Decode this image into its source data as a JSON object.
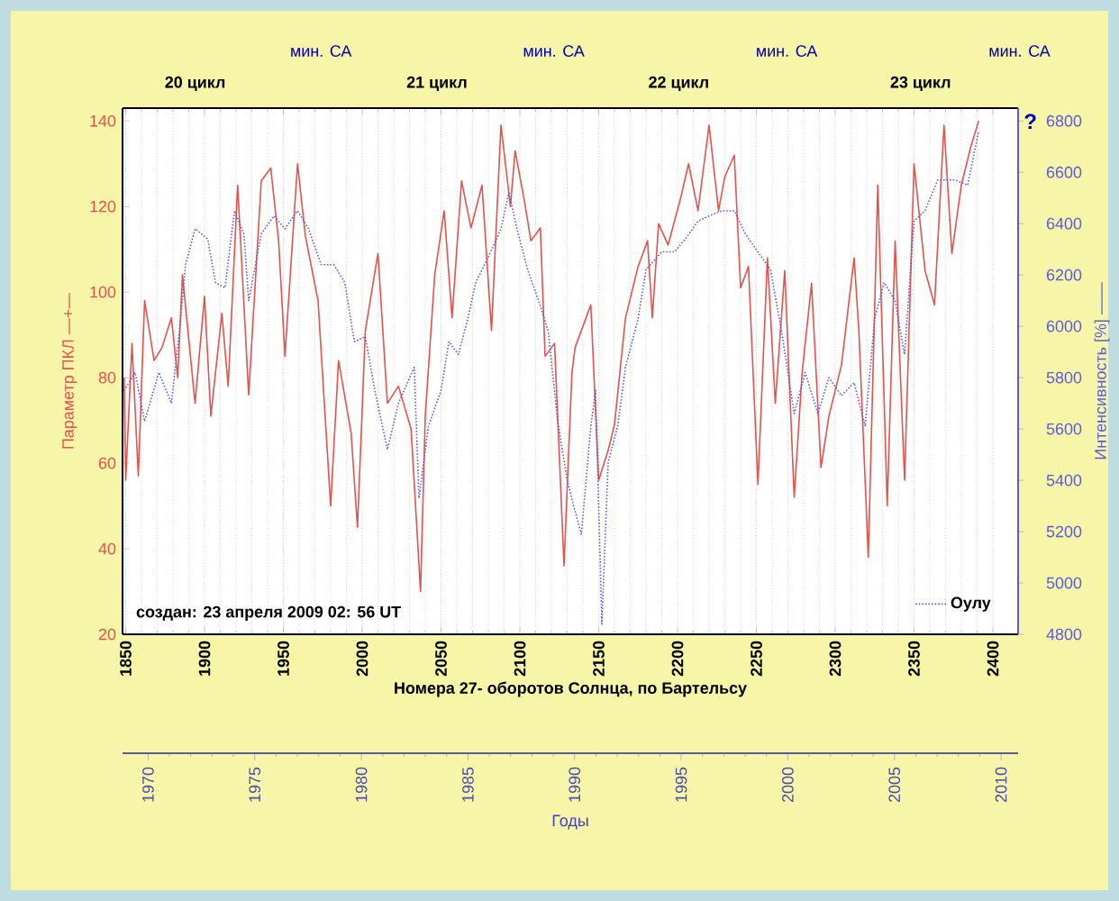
{
  "chart_data": {
    "type": "line",
    "xlabel": "Номера  27- оборотов  Солнца, по  Бартельсу",
    "ylabel": "Параметр ПКЛ —+—",
    "y2label": "Интенсивность [%] ——",
    "x2label": "Годы",
    "xlim": [
      1848,
      2416
    ],
    "xticks": [
      1850,
      1900,
      1950,
      2000,
      2050,
      2100,
      2150,
      2200,
      2250,
      2300,
      2350,
      2400
    ],
    "ylim": [
      20,
      143
    ],
    "yticks": [
      20,
      40,
      60,
      80,
      100,
      120,
      140
    ],
    "y2lim": [
      4800,
      6850
    ],
    "y2ticks": [
      4800,
      5000,
      5200,
      5400,
      5600,
      5800,
      6000,
      6200,
      6400,
      6600,
      6800
    ],
    "x2lim": [
      1968.8,
      2010.8
    ],
    "x2ticks": [
      1970,
      1975,
      1980,
      1985,
      1990,
      1995,
      2000,
      2005,
      2010
    ],
    "grid": "x",
    "legend": "bottom right",
    "annotations": [
      "20 цикл",
      "мин. СА",
      "21 цикл",
      "мин. СА",
      "22 цикл",
      "мин. СА",
      "23 цикл",
      "мин. СА",
      "создан: 23  апреля  2009  02: 56  UT",
      "?"
    ],
    "series": [
      {
        "color": "#e8504a",
        "line_style": "solid",
        "x": [
          1849,
          1850,
          1854,
          1858,
          1862,
          1868,
          1873,
          1879,
          1883,
          1886,
          1894,
          1900,
          1904,
          1911,
          1915,
          1921,
          1928,
          1936,
          1942,
          1947,
          1951,
          1959,
          1964,
          1972,
          1980,
          1985,
          1993,
          1997,
          2002,
          2010,
          2016,
          2023,
          2031,
          2037,
          2040,
          2046,
          2052,
          2057,
          2063,
          2069,
          2076,
          2082,
          2088,
          2094,
          2097,
          2103,
          2107,
          2113,
          2116,
          2122,
          2128,
          2133,
          2135,
          2145,
          2150,
          2156,
          2160,
          2167,
          2175,
          2181,
          2184,
          2188,
          2194,
          2202,
          2207,
          2213,
          2220,
          2226,
          2230,
          2236,
          2240,
          2245,
          2251,
          2257,
          2262,
          2268,
          2274,
          2279,
          2285,
          2291,
          2296,
          2304,
          2312,
          2315,
          2321,
          2327,
          2333,
          2338,
          2344,
          2350,
          2357,
          2363,
          2369,
          2374,
          2380,
          2386,
          2391
        ],
        "values": [
          80,
          56,
          88,
          57,
          98,
          84,
          87,
          94,
          80,
          104,
          74,
          99,
          71,
          95,
          78,
          125,
          76,
          126,
          129,
          112,
          85,
          130,
          113,
          98,
          50,
          84,
          67,
          45,
          91,
          109,
          74,
          78,
          68,
          30,
          71,
          104,
          119,
          94,
          126,
          115,
          125,
          91,
          139,
          120,
          133,
          121,
          112,
          115,
          85,
          88,
          36,
          81,
          87,
          97,
          56,
          63,
          69,
          94,
          106,
          112,
          94,
          116,
          111,
          122,
          130,
          119,
          139,
          119,
          127,
          132,
          101,
          106,
          55,
          108,
          74,
          105,
          52,
          81,
          102,
          59,
          71,
          83,
          108,
          91,
          38,
          125,
          50,
          112,
          56,
          130,
          105,
          97,
          139,
          109,
          125,
          134,
          140
        ]
      },
      {
        "name": "Оулу",
        "color": "#5a5ae0",
        "axis": "y2",
        "line_style": "dotted",
        "x": [
          1849,
          1856,
          1862,
          1871,
          1879,
          1884,
          1888,
          1894,
          1902,
          1907,
          1913,
          1919,
          1925,
          1928,
          1936,
          1944,
          1951,
          1959,
          1966,
          1974,
          1982,
          1989,
          1995,
          2002,
          2008,
          2016,
          2023,
          2033,
          2036,
          2042,
          2050,
          2055,
          2061,
          2067,
          2072,
          2080,
          2088,
          2093,
          2099,
          2105,
          2113,
          2118,
          2124,
          2130,
          2135,
          2139,
          2145,
          2148,
          2152,
          2156,
          2162,
          2167,
          2175,
          2180,
          2190,
          2198,
          2205,
          2213,
          2220,
          2228,
          2236,
          2243,
          2251,
          2259,
          2266,
          2274,
          2281,
          2289,
          2296,
          2304,
          2312,
          2319,
          2325,
          2331,
          2338,
          2344,
          2350,
          2357,
          2365,
          2376,
          2384,
          2391
        ],
        "values": [
          5750,
          5820,
          5630,
          5820,
          5700,
          5980,
          6240,
          6380,
          6340,
          6170,
          6150,
          6450,
          6360,
          6100,
          6360,
          6430,
          6380,
          6450,
          6380,
          6240,
          6240,
          6170,
          5940,
          5960,
          5750,
          5520,
          5700,
          5840,
          5330,
          5610,
          5750,
          5940,
          5890,
          6030,
          6170,
          6270,
          6380,
          6520,
          6360,
          6220,
          6080,
          5980,
          5630,
          5400,
          5280,
          5190,
          5610,
          5750,
          4840,
          5470,
          5610,
          5840,
          6030,
          6220,
          6290,
          6290,
          6340,
          6410,
          6430,
          6450,
          6450,
          6360,
          6290,
          6220,
          5980,
          5660,
          5820,
          5660,
          5800,
          5730,
          5780,
          5610,
          6030,
          6170,
          6100,
          5890,
          6410,
          6450,
          6570,
          6570,
          6550,
          6760
        ]
      }
    ]
  }
}
